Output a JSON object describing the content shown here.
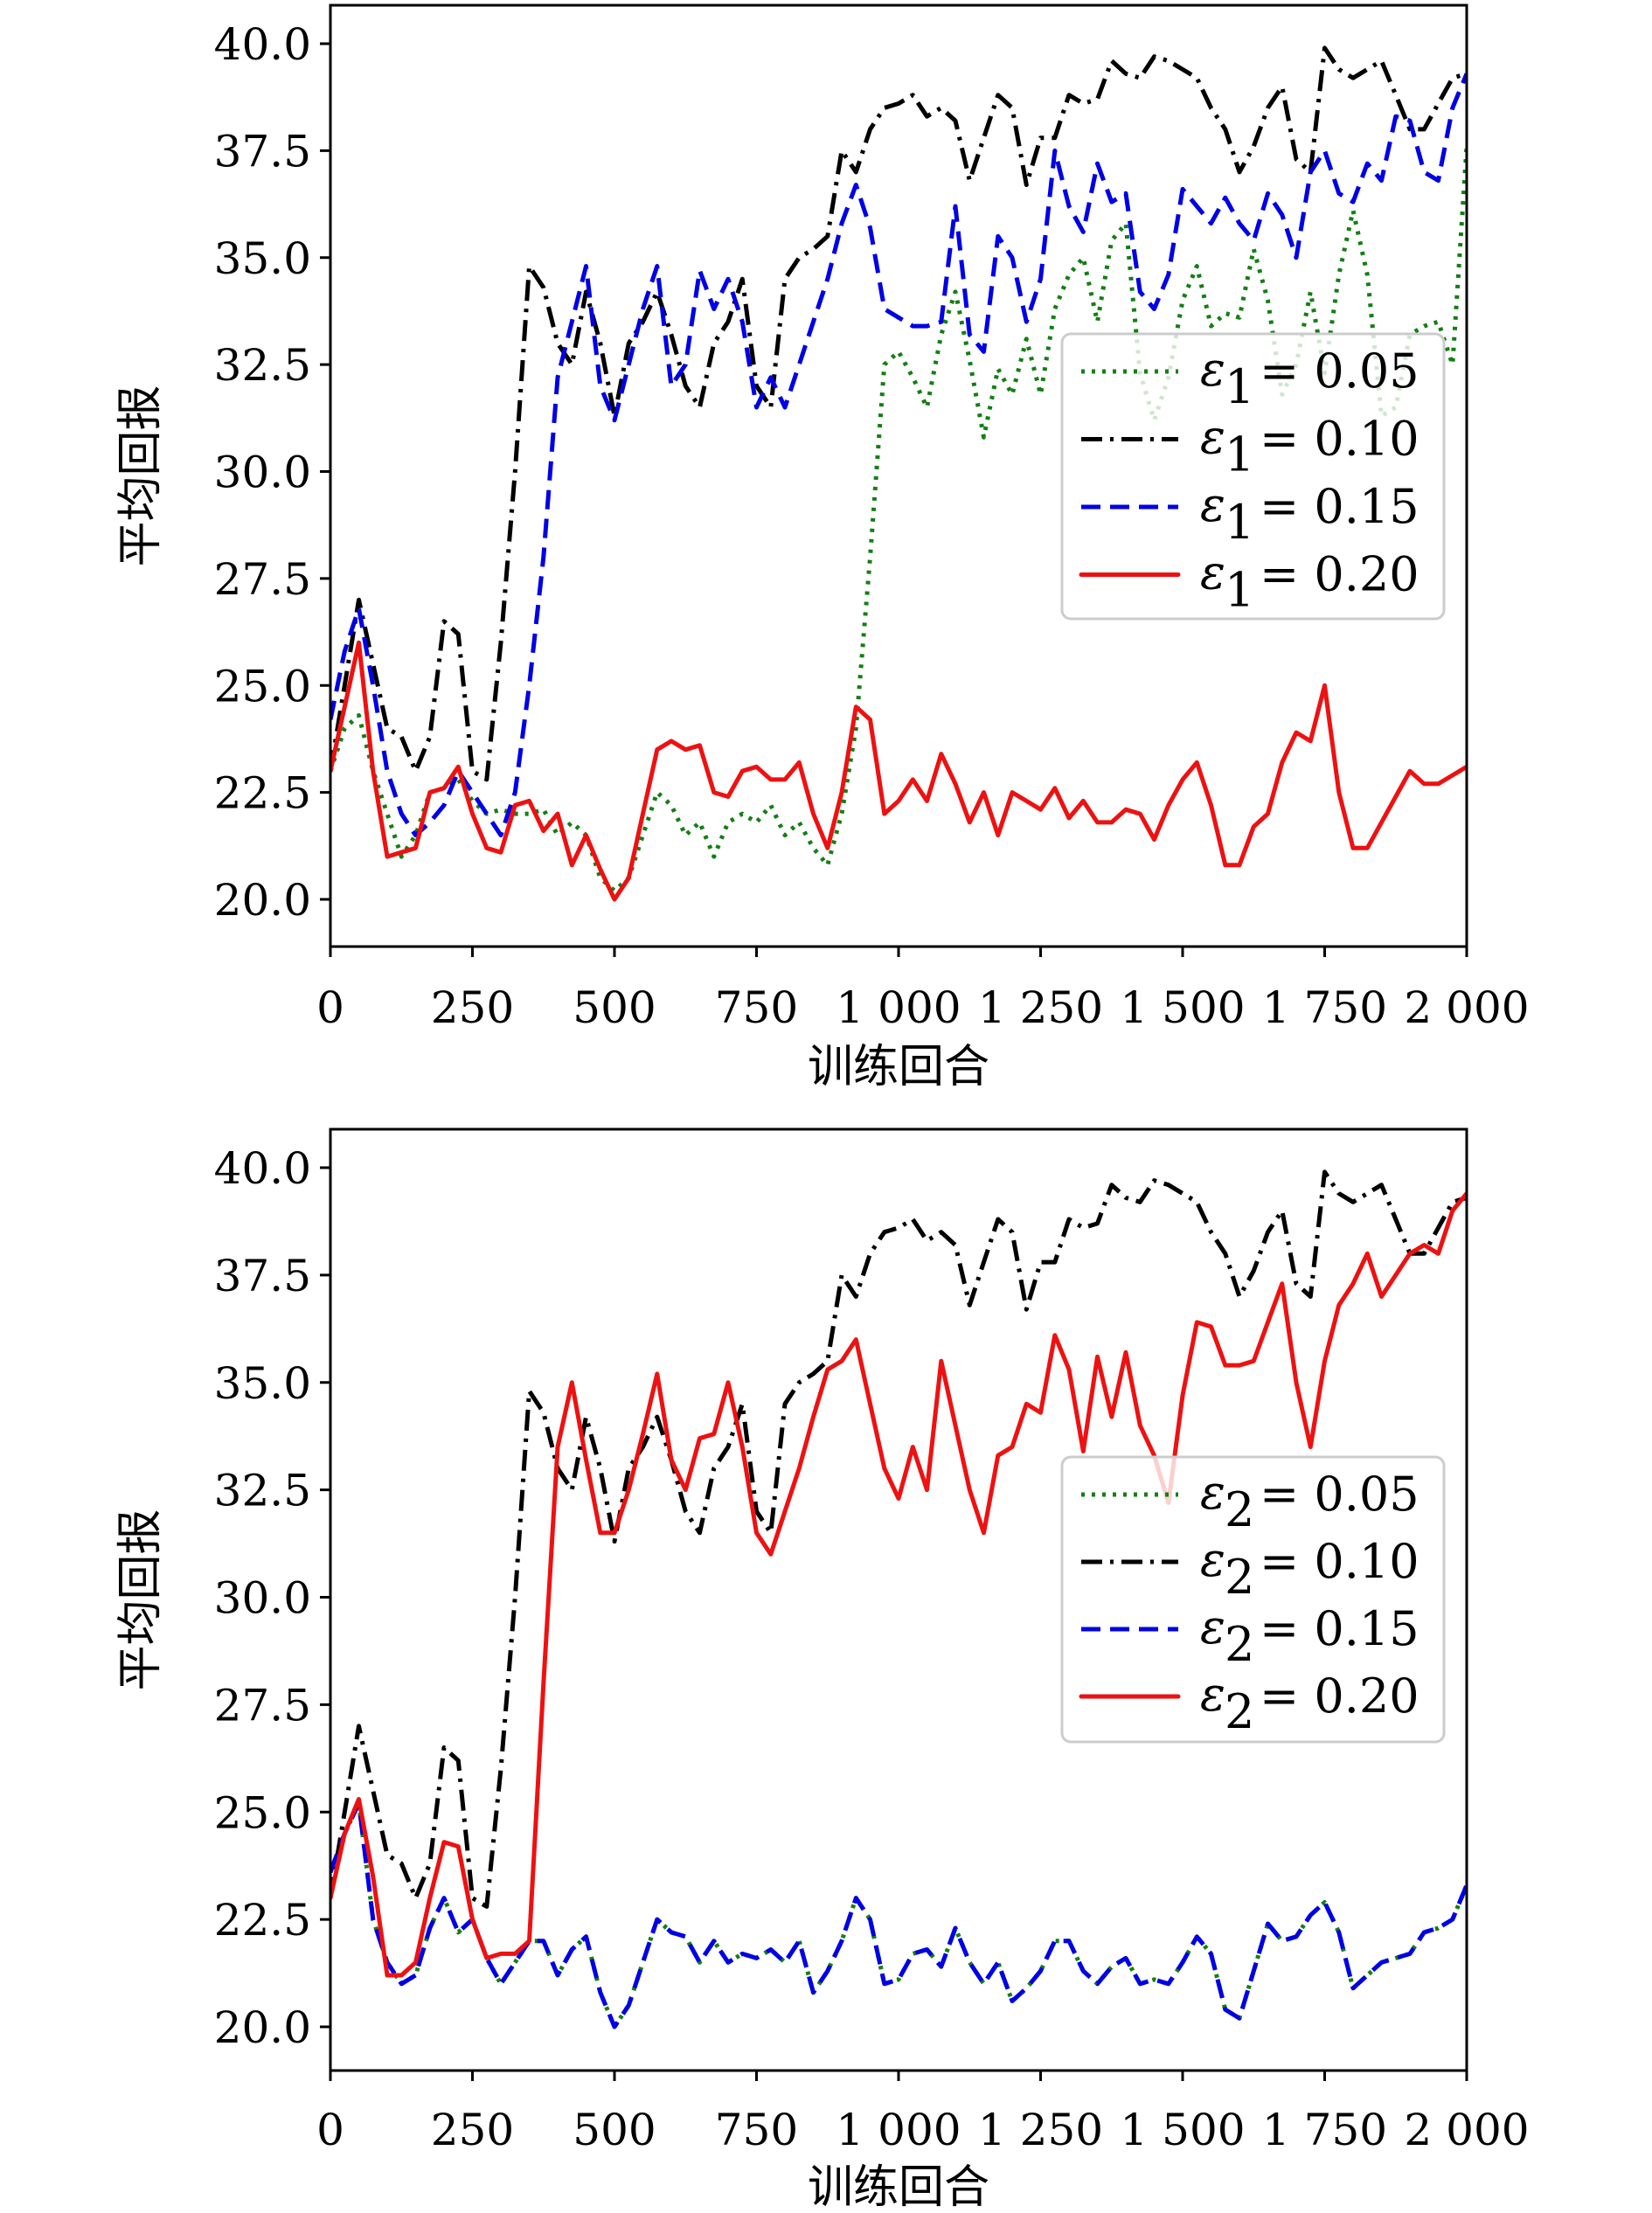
{
  "chart_data": [
    {
      "type": "line",
      "title": "",
      "xlabel": "训练回合",
      "ylabel": "平均回报",
      "xlim": [
        0,
        2000
      ],
      "ylim": [
        18.9,
        40.9
      ],
      "grid": false,
      "legend_position": "center-right",
      "xticks": [
        0,
        250,
        500,
        750,
        1000,
        1250,
        1500,
        1750,
        2000
      ],
      "xtick_labels": [
        "0",
        "250",
        "500",
        "750",
        "1 000",
        "1 250",
        "1 500",
        "1 750",
        "2 000"
      ],
      "yticks": [
        20.0,
        22.5,
        25.0,
        27.5,
        30.0,
        32.5,
        35.0,
        37.5,
        40.0
      ],
      "ytick_labels": [
        "20.0",
        "22.5",
        "25.0",
        "27.5",
        "30.0",
        "32.5",
        "35.0",
        "37.5",
        "40.0"
      ],
      "x": [
        0,
        25,
        50,
        75,
        100,
        125,
        150,
        175,
        200,
        225,
        250,
        275,
        300,
        325,
        350,
        375,
        400,
        425,
        450,
        475,
        500,
        525,
        550,
        575,
        600,
        625,
        650,
        675,
        700,
        725,
        750,
        775,
        800,
        825,
        850,
        875,
        900,
        925,
        950,
        975,
        1000,
        1025,
        1050,
        1075,
        1100,
        1125,
        1150,
        1175,
        1200,
        1225,
        1250,
        1275,
        1300,
        1325,
        1350,
        1375,
        1400,
        1425,
        1450,
        1475,
        1500,
        1525,
        1550,
        1575,
        1600,
        1625,
        1650,
        1675,
        1700,
        1725,
        1750,
        1775,
        1800,
        1825,
        1850,
        1875,
        1900,
        1925,
        1950,
        1975,
        2000
      ],
      "series": [
        {
          "name": "ε1 = 0.05",
          "legend_symbol": "ε",
          "legend_sub": "1",
          "legend_eq": "= 0.05",
          "color": "#137f13",
          "style": "dotted",
          "values": [
            23,
            24,
            24.3,
            23,
            22,
            21,
            21.5,
            22.5,
            22.6,
            22.8,
            22.3,
            22,
            22.1,
            22,
            22,
            22.1,
            21.5,
            21.8,
            21.5,
            20.5,
            20.2,
            20.5,
            21.5,
            22.5,
            22.2,
            21.5,
            21.8,
            21.0,
            21.8,
            22.0,
            21.8,
            22.2,
            21.5,
            21.8,
            21.2,
            20.8,
            22.0,
            24,
            28,
            32.5,
            32.8,
            32.2,
            31.5,
            33.2,
            34.2,
            32.6,
            30.8,
            32.4,
            31.8,
            33.1,
            31.8,
            33.8,
            34.6,
            35.0,
            33.5,
            35.4,
            35.8,
            32.3,
            31.2,
            32.2,
            34.0,
            34.8,
            33.4,
            33.7,
            33.6,
            35.2,
            34.0,
            31.8,
            32.5,
            34.2,
            32.3,
            34.6,
            36.1,
            34.6,
            31.3,
            31.5,
            33.2,
            33.4,
            33.5,
            32.5,
            37.6
          ]
        },
        {
          "name": "ε1 = 0.10",
          "legend_symbol": "ε",
          "legend_sub": "1",
          "legend_eq": "= 0.10",
          "color": "#000000",
          "style": "dashdot",
          "values": [
            23,
            25,
            27,
            25.5,
            24,
            23.8,
            23,
            23.8,
            26.5,
            26.2,
            23,
            22.8,
            26,
            30,
            34.8,
            34.3,
            33,
            32.5,
            34.2,
            33.0,
            31.3,
            33,
            33.5,
            34.2,
            33.2,
            32.0,
            31.5,
            33,
            33.5,
            34.5,
            32.0,
            31.5,
            34.5,
            35,
            35.2,
            35.5,
            37.5,
            37.0,
            38,
            38.5,
            38.6,
            38.8,
            38.3,
            38.5,
            38.2,
            36.8,
            37.8,
            38.8,
            38.5,
            36.7,
            37.8,
            37.8,
            38.8,
            38.6,
            38.7,
            39.6,
            39.3,
            39.2,
            39.7,
            39.6,
            39.4,
            39.2,
            38.5,
            38.0,
            37.0,
            37.6,
            38.5,
            39.0,
            37.3,
            37.0,
            39.9,
            39.4,
            39.2,
            39.4,
            39.6,
            38.8,
            38.0,
            38.0,
            38.6,
            39.2,
            39.3
          ]
        },
        {
          "name": "ε1 = 0.15",
          "legend_symbol": "ε",
          "legend_sub": "1",
          "legend_eq": "= 0.15",
          "color": "#0000e6",
          "style": "dashed",
          "values": [
            24.2,
            25.8,
            26.8,
            25,
            23,
            22,
            21.5,
            21.8,
            22.2,
            23,
            22.5,
            22,
            21.5,
            22.5,
            25,
            28,
            32.2,
            33.5,
            34.8,
            32,
            31.2,
            32.5,
            33.8,
            34.8,
            32.0,
            32.5,
            34.7,
            33.8,
            34.5,
            33.5,
            31.5,
            32.2,
            31.5,
            32.5,
            33.5,
            34.5,
            35.8,
            36.7,
            35.7,
            33.8,
            33.6,
            33.4,
            33.4,
            33.5,
            36.2,
            33.2,
            32.8,
            35.5,
            35.0,
            33.5,
            34.5,
            37.5,
            36.2,
            35.6,
            37.2,
            36.3,
            36.5,
            34.2,
            33.8,
            34.6,
            36.6,
            36.2,
            35.8,
            36.4,
            35.8,
            35.4,
            36.5,
            36.0,
            35.0,
            37.0,
            37.5,
            36.5,
            36.3,
            37.2,
            36.8,
            38.3,
            38.2,
            37.0,
            36.8,
            38.5,
            39.3
          ]
        },
        {
          "name": "ε1 = 0.20",
          "legend_symbol": "ε",
          "legend_sub": "1",
          "legend_eq": "= 0.20",
          "color": "#ee1111",
          "style": "solid",
          "values": [
            23.0,
            24.5,
            26.0,
            23,
            21.0,
            21.1,
            21.2,
            22.5,
            22.6,
            23.1,
            22.0,
            21.2,
            21.1,
            22.2,
            22.3,
            21.6,
            22.0,
            20.8,
            21.5,
            20.7,
            20.0,
            20.5,
            22.0,
            23.5,
            23.7,
            23.5,
            23.6,
            22.5,
            22.4,
            23.0,
            23.1,
            22.8,
            22.8,
            23.2,
            22.0,
            21.2,
            22.5,
            24.5,
            24.2,
            22.0,
            22.3,
            22.8,
            22.3,
            23.4,
            22.7,
            21.8,
            22.5,
            21.5,
            22.5,
            22.3,
            22.1,
            22.6,
            21.9,
            22.3,
            21.8,
            21.8,
            22.1,
            22.0,
            21.4,
            22.2,
            22.8,
            23.2,
            22.2,
            20.8,
            20.8,
            21.7,
            22.0,
            23.2,
            23.9,
            23.7,
            25.0,
            22.5,
            21.2,
            21.2,
            21.8,
            22.4,
            23.0,
            22.7,
            22.7,
            22.9,
            23.1
          ]
        }
      ]
    },
    {
      "type": "line",
      "title": "",
      "xlabel": "训练回合",
      "ylabel": "平均回报",
      "xlim": [
        0,
        2000
      ],
      "ylim": [
        18.9,
        40.9
      ],
      "grid": false,
      "legend_position": "center-right",
      "xticks": [
        0,
        250,
        500,
        750,
        1000,
        1250,
        1500,
        1750,
        2000
      ],
      "xtick_labels": [
        "0",
        "250",
        "500",
        "750",
        "1 000",
        "1 250",
        "1 500",
        "1 750",
        "2 000"
      ],
      "yticks": [
        20.0,
        22.5,
        25.0,
        27.5,
        30.0,
        32.5,
        35.0,
        37.5,
        40.0
      ],
      "ytick_labels": [
        "20.0",
        "22.5",
        "25.0",
        "27.5",
        "30.0",
        "32.5",
        "35.0",
        "37.5",
        "40.0"
      ],
      "x": [
        0,
        25,
        50,
        75,
        100,
        125,
        150,
        175,
        200,
        225,
        250,
        275,
        300,
        325,
        350,
        375,
        400,
        425,
        450,
        475,
        500,
        525,
        550,
        575,
        600,
        625,
        650,
        675,
        700,
        725,
        750,
        775,
        800,
        825,
        850,
        875,
        900,
        925,
        950,
        975,
        1000,
        1025,
        1050,
        1075,
        1100,
        1125,
        1150,
        1175,
        1200,
        1225,
        1250,
        1275,
        1300,
        1325,
        1350,
        1375,
        1400,
        1425,
        1450,
        1475,
        1500,
        1525,
        1550,
        1575,
        1600,
        1625,
        1650,
        1675,
        1700,
        1725,
        1750,
        1775,
        1800,
        1825,
        1850,
        1875,
        1900,
        1925,
        1950,
        1975,
        2000
      ],
      "series": [
        {
          "name": "ε2 = 0.05",
          "legend_symbol": "ε",
          "legend_sub": "2",
          "legend_eq": "= 0.05",
          "color": "#137f13",
          "style": "dotted",
          "values": [
            23.6,
            24.5,
            25.2,
            22.5,
            21.5,
            21.0,
            21.2,
            22.3,
            23.0,
            22.2,
            22.5,
            21.6,
            21.0,
            21.5,
            22.0,
            22.0,
            21.2,
            21.8,
            22.1,
            20.8,
            20.0,
            20.5,
            21.5,
            22.5,
            22.2,
            22.1,
            21.5,
            22.0,
            21.5,
            21.7,
            21.6,
            21.8,
            21.5,
            22.0,
            20.8,
            21.3,
            22.0,
            23.0,
            22.5,
            21.0,
            21.1,
            21.7,
            21.8,
            21.4,
            22.3,
            21.5,
            21.0,
            21.5,
            20.6,
            20.9,
            21.3,
            22.0,
            22.0,
            21.3,
            21.0,
            21.4,
            21.6,
            21.0,
            21.1,
            21.0,
            21.5,
            22.1,
            21.7,
            20.4,
            20.2,
            21.3,
            22.4,
            22.0,
            22.1,
            22.6,
            22.9,
            22.2,
            20.9,
            21.2,
            21.5,
            21.6,
            21.7,
            22.2,
            22.3,
            22.5,
            23.3
          ]
        },
        {
          "name": "ε2 = 0.10",
          "legend_symbol": "ε",
          "legend_sub": "2",
          "legend_eq": "= 0.10",
          "color": "#000000",
          "style": "dashdot",
          "values": [
            23,
            25,
            27,
            25.5,
            24,
            23.8,
            23,
            23.8,
            26.5,
            26.2,
            23,
            22.8,
            26,
            30,
            34.8,
            34.3,
            33,
            32.5,
            34.2,
            33.0,
            31.3,
            33,
            33.5,
            34.2,
            33.2,
            32.0,
            31.5,
            33,
            33.5,
            34.5,
            32.0,
            31.5,
            34.5,
            35,
            35.2,
            35.5,
            37.5,
            37.0,
            38,
            38.5,
            38.6,
            38.8,
            38.3,
            38.5,
            38.2,
            36.8,
            37.8,
            38.8,
            38.5,
            36.7,
            37.8,
            37.8,
            38.8,
            38.6,
            38.7,
            39.6,
            39.3,
            39.2,
            39.7,
            39.6,
            39.4,
            39.2,
            38.5,
            38.0,
            37.0,
            37.6,
            38.5,
            39.0,
            37.3,
            37.0,
            39.9,
            39.4,
            39.2,
            39.4,
            39.6,
            38.8,
            38.0,
            38.0,
            38.6,
            39.2,
            39.3
          ]
        },
        {
          "name": "ε2 = 0.15",
          "legend_symbol": "ε",
          "legend_sub": "2",
          "legend_eq": "= 0.15",
          "color": "#0000e6",
          "style": "dashed",
          "values": [
            23.6,
            24.5,
            25.2,
            22.5,
            21.5,
            21.0,
            21.2,
            22.3,
            23.0,
            22.2,
            22.5,
            21.6,
            21.0,
            21.5,
            22.0,
            22.0,
            21.2,
            21.8,
            22.1,
            20.8,
            20.0,
            20.5,
            21.5,
            22.5,
            22.2,
            22.1,
            21.5,
            22.0,
            21.5,
            21.7,
            21.6,
            21.8,
            21.5,
            22.0,
            20.8,
            21.3,
            22.0,
            23.0,
            22.5,
            21.0,
            21.1,
            21.7,
            21.8,
            21.4,
            22.3,
            21.5,
            21.0,
            21.5,
            20.6,
            20.9,
            21.3,
            22.0,
            22.0,
            21.3,
            21.0,
            21.4,
            21.6,
            21.0,
            21.1,
            21.0,
            21.5,
            22.1,
            21.7,
            20.4,
            20.2,
            21.3,
            22.4,
            22.0,
            22.1,
            22.6,
            22.9,
            22.2,
            20.9,
            21.2,
            21.5,
            21.6,
            21.7,
            22.2,
            22.3,
            22.5,
            23.3
          ]
        },
        {
          "name": "ε2 = 0.20",
          "legend_symbol": "ε",
          "legend_sub": "2",
          "legend_eq": "= 0.20",
          "color": "#ee1111",
          "style": "solid",
          "values": [
            23.0,
            24.5,
            25.3,
            23.5,
            21.2,
            21.2,
            21.5,
            23,
            24.3,
            24.2,
            22.5,
            21.6,
            21.7,
            21.7,
            22,
            28,
            33.5,
            35,
            33.2,
            31.5,
            31.5,
            32.5,
            33.8,
            35.2,
            33.2,
            32.5,
            33.7,
            33.8,
            35,
            33.5,
            31.5,
            31,
            32,
            33,
            34.2,
            35.3,
            35.5,
            36.0,
            34.5,
            33,
            32.3,
            33.5,
            32.5,
            35.5,
            34,
            32.5,
            31.5,
            33.3,
            33.5,
            34.5,
            34.3,
            36.1,
            35.3,
            33.4,
            35.6,
            34.2,
            35.7,
            34.0,
            33.3,
            32.2,
            34.7,
            36.4,
            36.3,
            35.4,
            35.4,
            35.5,
            36.4,
            37.3,
            35.0,
            33.5,
            35.5,
            36.8,
            37.3,
            38.0,
            37.0,
            37.5,
            38.0,
            38.2,
            38.0,
            39.0,
            39.4
          ]
        }
      ]
    }
  ]
}
